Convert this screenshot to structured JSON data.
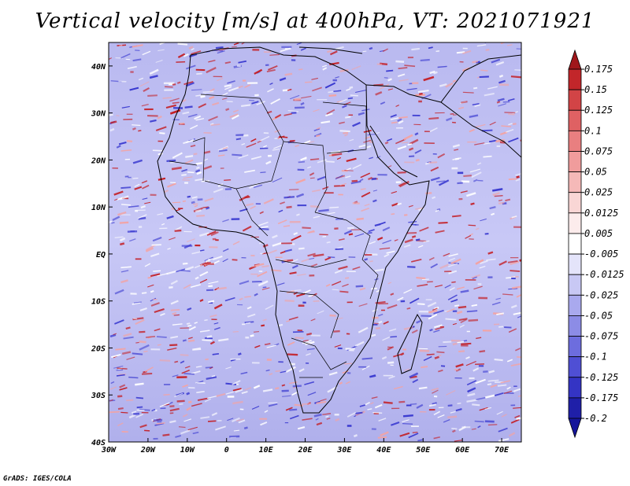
{
  "title": "Vertical velocity [m/s] at 400hPa, VT: 2021071921",
  "footer": "GrADS: IGES/COLA",
  "map": {
    "lat_labels": [
      "40N",
      "30N",
      "20N",
      "10N",
      "EQ",
      "10S",
      "20S",
      "30S",
      "40S"
    ],
    "lon_labels": [
      "30W",
      "20W",
      "10W",
      "0",
      "10E",
      "20E",
      "30E",
      "40E",
      "50E",
      "60E",
      "70E"
    ],
    "lon_range": [
      -30,
      75
    ],
    "lat_range": [
      -40,
      45
    ],
    "field_colors": {
      "up": "#c41e24",
      "down": "#3a3ad0",
      "neutral": "#ffffff"
    }
  },
  "colorbar": {
    "levels": [
      "0.175",
      "0.15",
      "0.125",
      "0.1",
      "0.075",
      "0.05",
      "0.025",
      "0.0125",
      "0.005",
      "-0.005",
      "-0.0125",
      "-0.025",
      "-0.05",
      "-0.075",
      "-0.1",
      "-0.125",
      "-0.175",
      "-0.2"
    ],
    "colors": [
      "#a0171b",
      "#c2262a",
      "#d24446",
      "#df6163",
      "#e97f80",
      "#f09c9c",
      "#f5b9b8",
      "#f9d6d5",
      "#fcecec",
      "#ffffff",
      "#e4e4fa",
      "#c8c8f4",
      "#a9a9ee",
      "#8c8ce6",
      "#6d6dde",
      "#4f4fd4",
      "#3434c4",
      "#1f1fa8",
      "#15159a"
    ]
  }
}
